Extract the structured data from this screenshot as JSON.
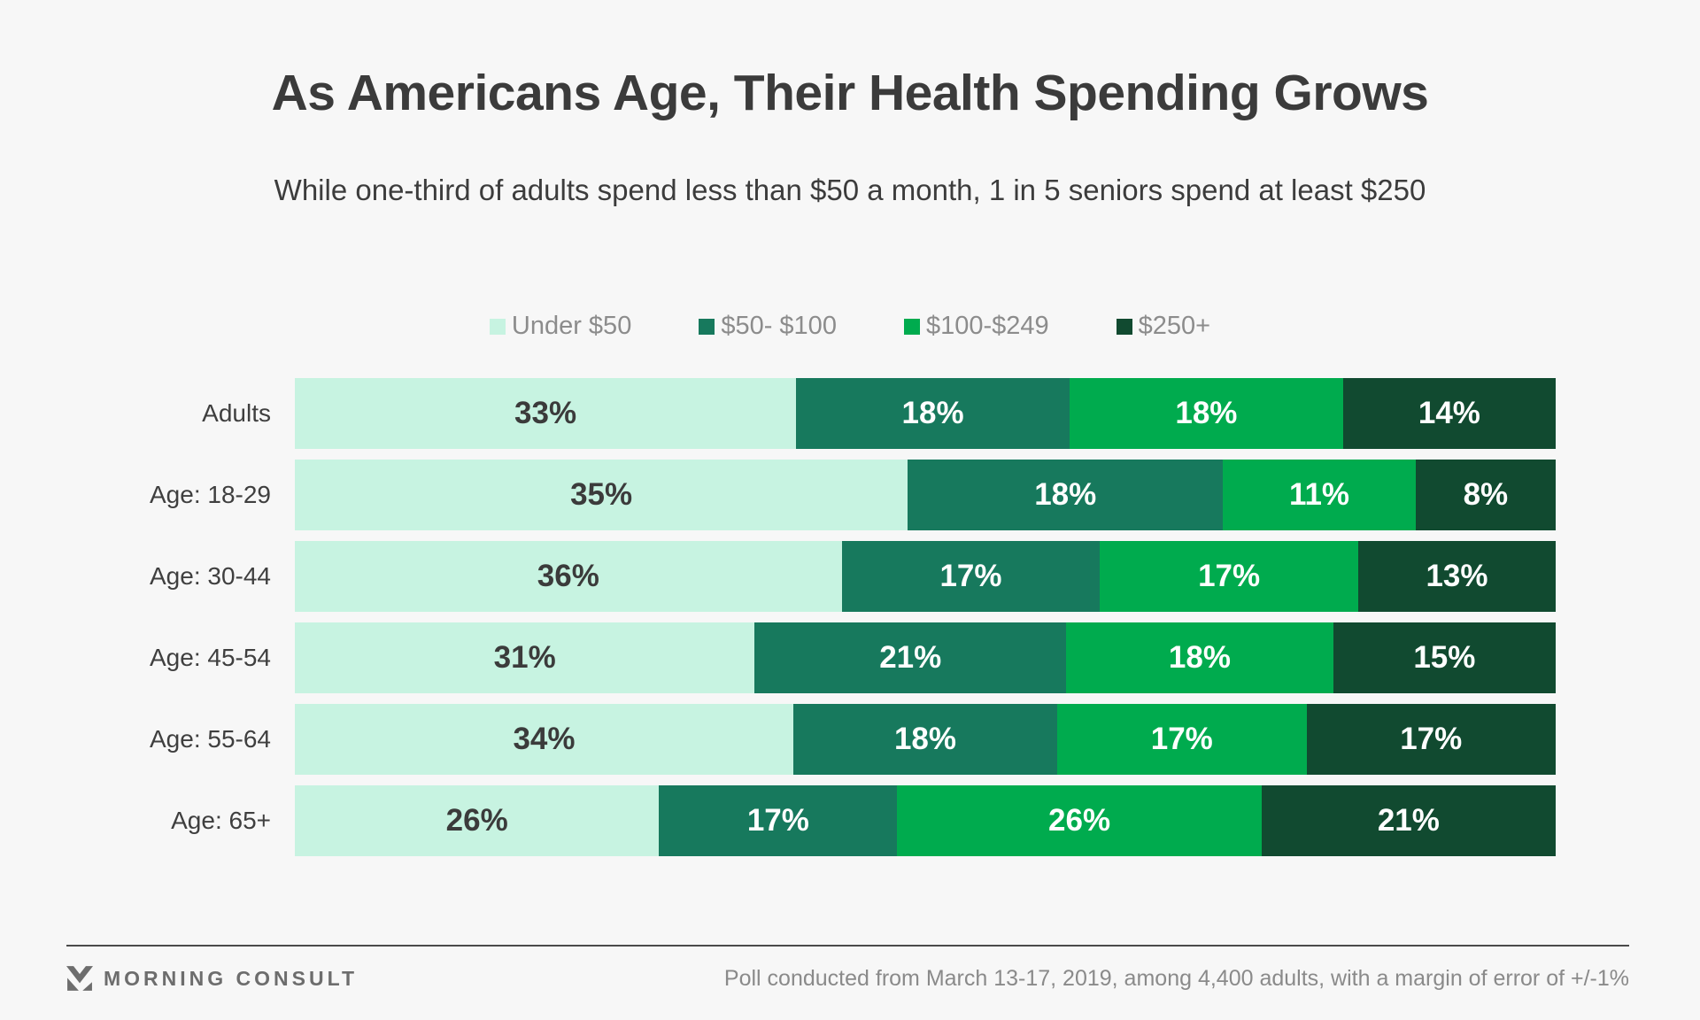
{
  "title": "As Americans Age, Their Health Spending Grows",
  "subtitle": "While one-third of adults spend less than $50 a month, 1 in 5 seniors spend at least $250",
  "colors": {
    "background": "#f7f7f7",
    "title_text": "#3b3b3b",
    "legend_text": "#8c8c8c",
    "row_label_text": "#3f3f3f",
    "divider": "#4a4a4a",
    "footer_text": "#8a8a8a",
    "brand_text": "#6d6d6d"
  },
  "chart_data": {
    "type": "bar",
    "orientation": "horizontal-stacked",
    "normalized_to_full_width": true,
    "title": "As Americans Age, Their Health Spending Grows",
    "subtitle": "While one-third of adults spend less than $50 a month, 1 in 5 seniors spend at least $250",
    "legend_position": "top-center",
    "value_suffix": "%",
    "categories": [
      "Adults",
      "Age: 18-29",
      "Age: 30-44",
      "Age: 45-54",
      "Age: 55-64",
      "Age: 65+"
    ],
    "series": [
      {
        "name": "Under $50",
        "color": "#c7f3e1",
        "label_color": "#3b3b3b",
        "values": [
          33,
          35,
          36,
          31,
          34,
          26
        ]
      },
      {
        "name": "$50- $100",
        "color": "#17795d",
        "label_color": "#ffffff",
        "values": [
          18,
          18,
          17,
          21,
          18,
          17
        ]
      },
      {
        "name": "$100-$249",
        "color": "#00ab4e",
        "label_color": "#ffffff",
        "values": [
          18,
          11,
          17,
          18,
          17,
          26
        ]
      },
      {
        "name": "$250+",
        "color": "#114a30",
        "label_color": "#ffffff",
        "values": [
          14,
          8,
          13,
          15,
          17,
          21
        ]
      }
    ]
  },
  "footer": {
    "brand": "MORNING CONSULT",
    "note": "Poll conducted from March 13-17, 2019, among 4,400 adults, with a margin of error of +/-1%"
  }
}
